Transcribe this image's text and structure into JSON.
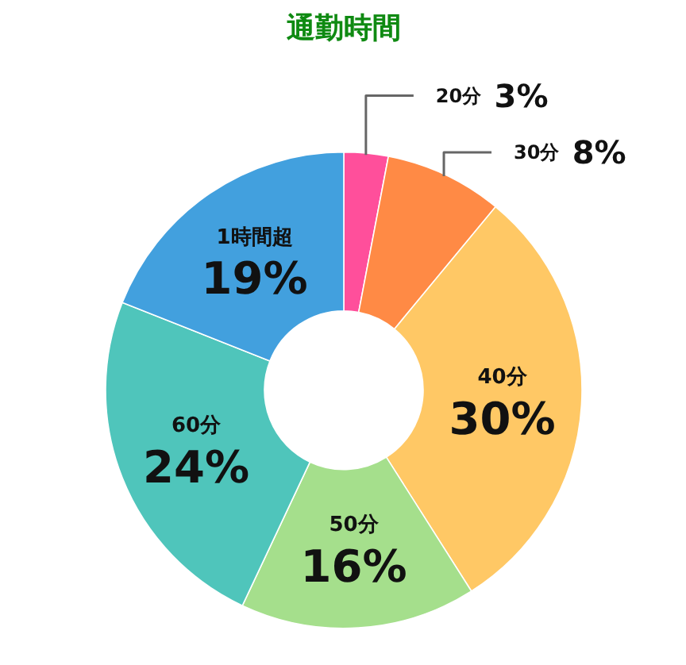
{
  "chart_data": {
    "type": "donut",
    "title": "通勤時間",
    "categories": [
      "20分",
      "30分",
      "40分",
      "50分",
      "60分",
      "1時間超"
    ],
    "values": [
      3,
      8,
      30,
      16,
      24,
      19
    ],
    "colors": [
      "#ff4f9b",
      "#ff8a45",
      "#ffc865",
      "#a5df8c",
      "#4fc5bb",
      "#42a0de"
    ],
    "value_labels": [
      "3%",
      "8%",
      "30%",
      "16%",
      "24%",
      "19%"
    ]
  }
}
